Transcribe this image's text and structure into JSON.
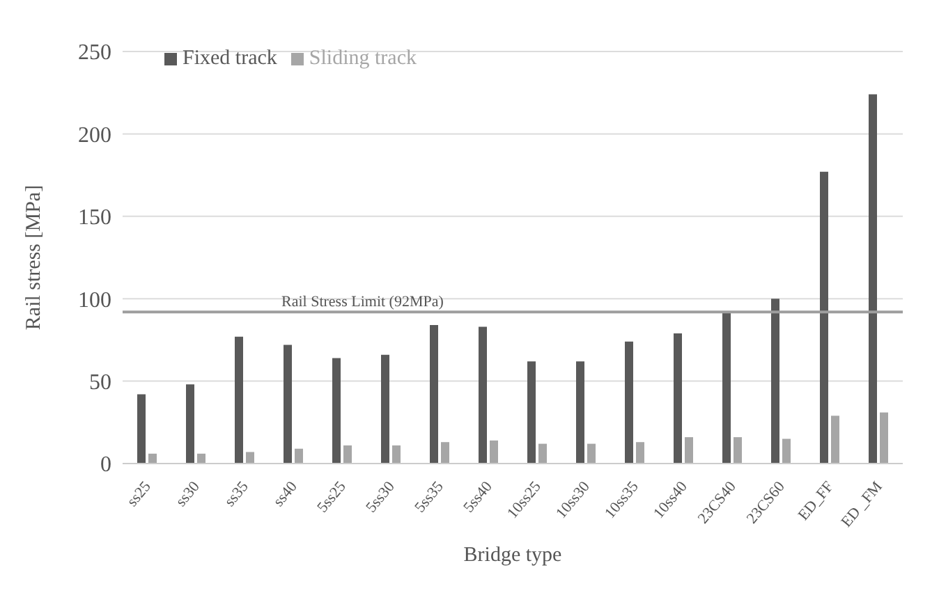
{
  "chart_data": {
    "type": "bar",
    "xlabel": "Bridge type",
    "ylabel": "Rail stress [MPa]",
    "categories": [
      "ss25",
      "ss30",
      "ss35",
      "ss40",
      "5ss25",
      "5ss30",
      "5ss35",
      "5ss40",
      "10ss25",
      "10ss30",
      "10ss35",
      "10ss40",
      "23CS40",
      "23CS60",
      "ED_FF",
      "ED _FM"
    ],
    "series": [
      {
        "name": "Fixed track",
        "color": "#595959",
        "values": [
          42,
          48,
          77,
          72,
          64,
          66,
          84,
          83,
          62,
          62,
          74,
          79,
          92,
          100,
          177,
          224
        ]
      },
      {
        "name": "Sliding track",
        "color": "#a6a6a6",
        "values": [
          6,
          6,
          7,
          9,
          11,
          11,
          13,
          14,
          12,
          12,
          13,
          16,
          16,
          15,
          29,
          31
        ]
      }
    ],
    "ylim": [
      0,
      250
    ],
    "yticks": [
      0,
      50,
      100,
      150,
      200,
      250
    ],
    "grid": "y",
    "legend": "top left",
    "ref_lines": [
      {
        "axis": "y",
        "value": 92,
        "label": "Rail Stress Limit (92MPa)",
        "color": "#9e9e9e"
      }
    ]
  }
}
